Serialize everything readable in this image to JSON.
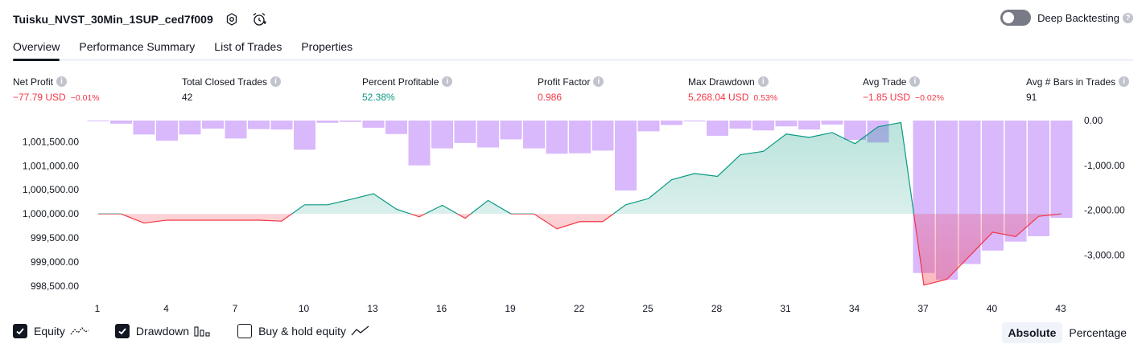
{
  "header": {
    "title": "Tuisku_NVST_30Min_1SUP_ced7f009",
    "icons": [
      "settings-icon",
      "alert-icon"
    ],
    "deep_backtesting_label": "Deep Backtesting",
    "deep_backtesting_enabled": false
  },
  "tabs": [
    {
      "label": "Overview",
      "active": true
    },
    {
      "label": "Performance Summary",
      "active": false
    },
    {
      "label": "List of Trades",
      "active": false
    },
    {
      "label": "Properties",
      "active": false
    }
  ],
  "metrics": [
    {
      "label": "Net Profit",
      "value": "−77.79 USD",
      "pct": "−0.01%",
      "tone": "red"
    },
    {
      "label": "Total Closed Trades",
      "value": "42",
      "pct": "",
      "tone": "dark"
    },
    {
      "label": "Percent Profitable",
      "value": "52.38%",
      "pct": "",
      "tone": "green"
    },
    {
      "label": "Profit Factor",
      "value": "0.986",
      "pct": "",
      "tone": "red"
    },
    {
      "label": "Max Drawdown",
      "value": "5,268.04 USD",
      "pct": "0.53%",
      "tone": "red"
    },
    {
      "label": "Avg Trade",
      "value": "−1.85 USD",
      "pct": "−0.02%",
      "tone": "red"
    },
    {
      "label": "Avg # Bars in Trades",
      "value": "91",
      "pct": "",
      "tone": "dark"
    }
  ],
  "colors": {
    "profit": "#089981",
    "loss": "#f23645",
    "drawdown": "#d9b8fb",
    "equity_fill_top": "#089981",
    "loss_fill": "#f23645"
  },
  "chart_data": {
    "type": "line",
    "title": "",
    "x": [
      1,
      2,
      3,
      4,
      5,
      6,
      7,
      8,
      9,
      10,
      11,
      12,
      13,
      14,
      15,
      16,
      17,
      18,
      19,
      20,
      21,
      22,
      23,
      24,
      25,
      26,
      27,
      28,
      29,
      30,
      31,
      32,
      33,
      34,
      35,
      36,
      37,
      38,
      39,
      40,
      41,
      42,
      43
    ],
    "x_tick_labels": [
      "1",
      "4",
      "7",
      "10",
      "13",
      "16",
      "19",
      "22",
      "25",
      "28",
      "31",
      "34",
      "37",
      "40",
      "43"
    ],
    "series": [
      {
        "name": "Equity",
        "axis": "left",
        "values": [
          1000000,
          1000000,
          999810,
          999870,
          999870,
          999870,
          999870,
          999870,
          999850,
          1000190,
          1000190,
          1000300,
          1000420,
          1000100,
          999940,
          1000180,
          999910,
          1000280,
          1000000,
          1000000,
          999690,
          999840,
          999840,
          1000190,
          1000320,
          1000710,
          1000840,
          1000780,
          1001230,
          1001300,
          1001660,
          1001590,
          1001690,
          1001460,
          1001810,
          1001900,
          998520,
          998640,
          999130,
          999620,
          999530,
          999950,
          1000000
        ]
      },
      {
        "name": "Drawdown",
        "axis": "right",
        "type": "bar",
        "values": [
          -10,
          -70,
          -310,
          -450,
          -310,
          -180,
          -400,
          -190,
          -200,
          -650,
          -50,
          -30,
          -160,
          -300,
          -1000,
          -620,
          -500,
          -600,
          -420,
          -620,
          -740,
          -730,
          -670,
          -1560,
          -240,
          -100,
          -20,
          -340,
          -180,
          -220,
          -130,
          -200,
          -90,
          -430,
          -490,
          0,
          -3400,
          -3550,
          -3200,
          -2900,
          -2700,
          -2580,
          -2170
        ]
      }
    ],
    "y_left_ticks": [
      "1,001,500.00",
      "1,001,000.00",
      "1,000,500.00",
      "1,000,000.00",
      "999,500.00",
      "999,000.00",
      "998,500.00"
    ],
    "y_right_ticks": [
      "0.00",
      "-1,000.00",
      "-2,000.00",
      "-3,000.00"
    ],
    "ylim_left": [
      998400,
      1001940
    ],
    "ylim_right": [
      -3800,
      0
    ],
    "grid": false
  },
  "legend": [
    {
      "label": "Equity",
      "checked": true,
      "icon": "equity-line-icon"
    },
    {
      "label": "Drawdown",
      "checked": true,
      "icon": "drawdown-bars-icon"
    },
    {
      "label": "Buy & hold equity",
      "checked": false,
      "icon": "buyhold-line-icon"
    }
  ],
  "modes": [
    {
      "label": "Absolute",
      "active": true
    },
    {
      "label": "Percentage",
      "active": false
    }
  ]
}
